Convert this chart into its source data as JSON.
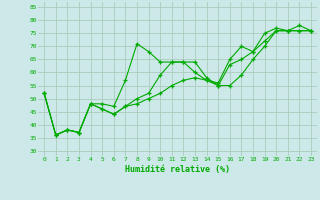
{
  "xlabel": "Humidité relative (%)",
  "background_color": "#cce8e8",
  "grid_color": "#aaccbb",
  "line_color": "#00aa00",
  "xlim": [
    -0.5,
    23.5
  ],
  "ylim": [
    28,
    87
  ],
  "yticks": [
    30,
    35,
    40,
    45,
    50,
    55,
    60,
    65,
    70,
    75,
    80,
    85
  ],
  "xticks": [
    0,
    1,
    2,
    3,
    4,
    5,
    6,
    7,
    8,
    9,
    10,
    11,
    12,
    13,
    14,
    15,
    16,
    17,
    18,
    19,
    20,
    21,
    22,
    23
  ],
  "series": [
    [
      52,
      36,
      38,
      37,
      48,
      48,
      47,
      57,
      71,
      68,
      64,
      64,
      64,
      64,
      58,
      55,
      55,
      59,
      65,
      70,
      76,
      76,
      78,
      76
    ],
    [
      52,
      36,
      38,
      37,
      48,
      46,
      44,
      47,
      50,
      52,
      59,
      64,
      64,
      60,
      57,
      56,
      65,
      70,
      68,
      75,
      77,
      76,
      76,
      76
    ],
    [
      52,
      36,
      38,
      37,
      48,
      46,
      44,
      47,
      48,
      50,
      52,
      55,
      57,
      58,
      57,
      55,
      63,
      65,
      68,
      72,
      76,
      76,
      76,
      76
    ]
  ]
}
